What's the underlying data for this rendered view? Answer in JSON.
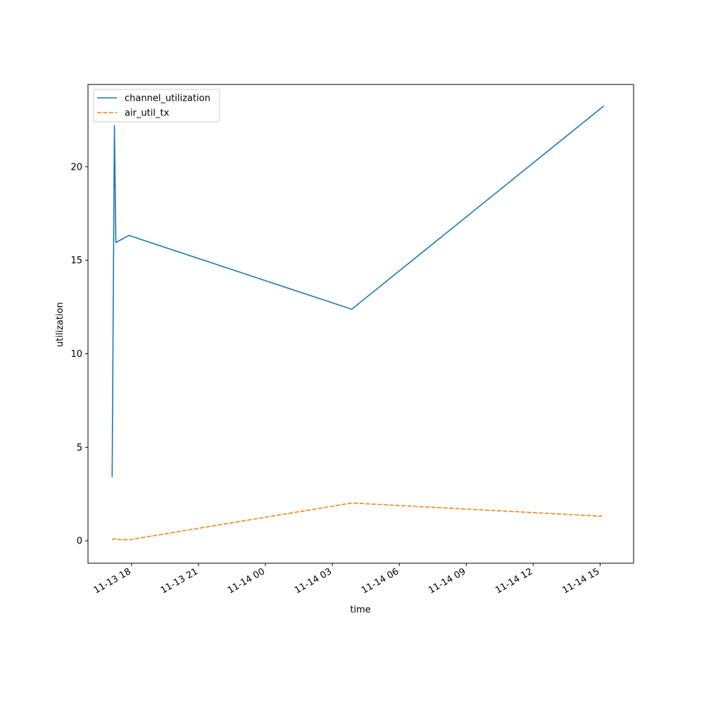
{
  "chart_data": {
    "type": "line",
    "xlabel": "time",
    "ylabel": "utilization",
    "x_ticks": [
      "2023-11-13T18:00",
      "2023-11-13T21:00",
      "2023-11-14T00:00",
      "2023-11-14T03:00",
      "2023-11-14T06:00",
      "2023-11-14T09:00",
      "2023-11-14T12:00",
      "2023-11-14T15:00"
    ],
    "x_tick_labels": [
      "11-13 18",
      "11-13 21",
      "11-14 00",
      "11-14 03",
      "11-14 06",
      "11-14 09",
      "11-14 12",
      "11-14 15"
    ],
    "xlim": [
      "2023-11-13T16:03",
      "2023-11-14T16:30"
    ],
    "y_ticks": [
      0,
      5,
      10,
      15,
      20
    ],
    "ylim": [
      -1.2,
      24.4
    ],
    "grid": false,
    "legend_position": "top-left",
    "series": [
      {
        "name": "channel_utilization",
        "color": "#1f77b4",
        "style": "solid",
        "x": [
          "2023-11-13T17:08",
          "2023-11-13T17:14",
          "2023-11-13T17:18",
          "2023-11-13T17:53",
          "2023-11-14T03:52",
          "2023-11-14T15:10"
        ],
        "y": [
          3.4,
          22.2,
          15.95,
          16.33,
          12.38,
          23.25
        ]
      },
      {
        "name": "air_util_tx",
        "color": "#ff7f0e",
        "style": "dashed",
        "x": [
          "2023-11-13T17:08",
          "2023-11-13T17:14",
          "2023-11-13T17:18",
          "2023-11-13T17:53",
          "2023-11-14T03:52",
          "2023-11-14T15:05"
        ],
        "y": [
          0.03,
          0.12,
          0.07,
          0.05,
          2.02,
          1.31
        ]
      }
    ]
  }
}
